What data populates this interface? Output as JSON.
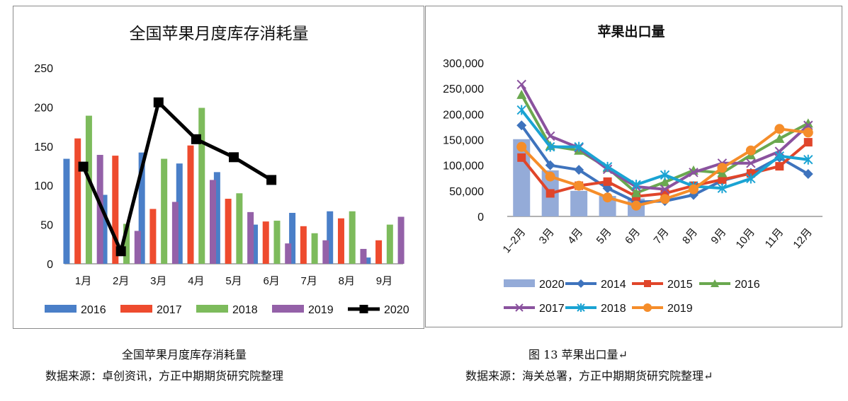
{
  "chart_data": [
    {
      "type": "bar",
      "title": "全国苹果月度库存消耗量",
      "categories": [
        "1月",
        "2月",
        "3月",
        "4月",
        "5月",
        "6月",
        "7月",
        "8月",
        "9月"
      ],
      "ylim": [
        0,
        250
      ],
      "yticks": [
        0,
        50,
        100,
        150,
        200,
        250
      ],
      "grid": false,
      "legend": "bottom",
      "series": [
        {
          "name": "2016",
          "kind": "bar",
          "color": "#4a7fc8",
          "values": [
            134,
            88,
            142,
            128,
            117,
            50,
            65,
            67,
            8
          ]
        },
        {
          "name": "2017",
          "kind": "bar",
          "color": "#ee4b2e",
          "values": [
            160,
            138,
            70,
            151,
            83,
            54,
            48,
            58,
            30
          ]
        },
        {
          "name": "2018",
          "kind": "bar",
          "color": "#7dbb5c",
          "values": [
            189,
            51,
            134,
            199,
            90,
            55,
            39,
            67,
            50
          ]
        },
        {
          "name": "2019",
          "kind": "bar",
          "color": "#9461a8",
          "values": [
            139,
            42,
            79,
            107,
            66,
            26,
            30,
            19,
            60
          ]
        },
        {
          "name": "2020",
          "kind": "line",
          "marker": "square",
          "color": "#000000",
          "values": [
            124,
            16,
            206,
            159,
            136,
            107,
            null,
            null,
            null
          ]
        }
      ]
    },
    {
      "type": "line",
      "title": "苹果出口量",
      "categories": [
        "1–2月",
        "3月",
        "4月",
        "5月",
        "6月",
        "7月",
        "8月",
        "9月",
        "10月",
        "11月",
        "12月"
      ],
      "ylim": [
        0,
        300000
      ],
      "yticks": [
        "0",
        "50,000",
        "100,000",
        "150,000",
        "200,000",
        "250,000",
        "300,000"
      ],
      "grid": false,
      "legend": "bottom",
      "series": [
        {
          "name": "2020",
          "kind": "bar",
          "color": "#94abd8",
          "values": [
            151000,
            90000,
            50000,
            40000,
            35000,
            null,
            null,
            null,
            null,
            null,
            null
          ]
        },
        {
          "name": "2014",
          "kind": "line",
          "marker": "diamond",
          "color": "#3e73bd",
          "values": [
            178000,
            100000,
            91000,
            55000,
            28000,
            30000,
            42000,
            70000,
            85000,
            115000,
            83000
          ]
        },
        {
          "name": "2015",
          "kind": "line",
          "marker": "square",
          "color": "#e0452a",
          "values": [
            115000,
            45000,
            60000,
            68000,
            39000,
            45000,
            60000,
            72000,
            84000,
            98000,
            145000
          ]
        },
        {
          "name": "2016",
          "kind": "line",
          "marker": "triangle",
          "color": "#6aa84f",
          "values": [
            238000,
            138000,
            129000,
            95000,
            46000,
            67000,
            90000,
            85000,
            120000,
            152000,
            182000
          ]
        },
        {
          "name": "2017",
          "kind": "line",
          "marker": "x",
          "color": "#8a529e",
          "values": [
            258000,
            157000,
            134000,
            92000,
            58000,
            53000,
            86000,
            104000,
            104000,
            127000,
            178000
          ]
        },
        {
          "name": "2018",
          "kind": "line",
          "marker": "star",
          "color": "#1aa3d3",
          "values": [
            208000,
            136000,
            136000,
            97000,
            62000,
            81000,
            59000,
            55000,
            74000,
            118000,
            111000
          ]
        },
        {
          "name": "2019",
          "kind": "line",
          "marker": "circle",
          "color": "#f58d2a",
          "values": [
            136000,
            78000,
            60000,
            37000,
            21000,
            34000,
            53000,
            95000,
            129000,
            171000,
            164000
          ]
        }
      ]
    }
  ],
  "captions": {
    "left_title": "全国苹果月度库存消耗量",
    "left_source": "数据来源：卓创资讯，方正中期期货研究院整理",
    "right_title": "图 13  苹果出口量↵",
    "right_source": "数据来源：海关总署，方正中期期货研究院整理↵"
  }
}
